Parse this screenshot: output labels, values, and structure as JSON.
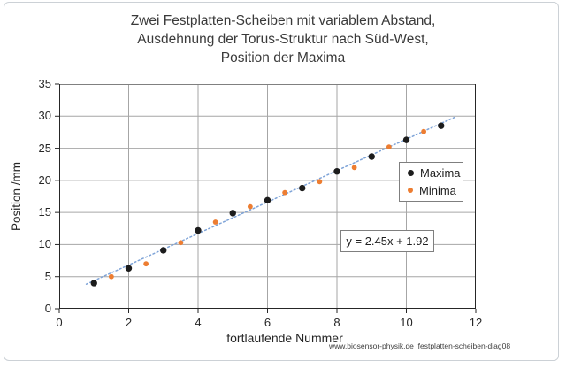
{
  "title": {
    "lines": [
      "Zwei Festplatten-Scheiben mit variablem Abstand,",
      "Ausdehnung der Torus-Struktur nach Süd-West,",
      "Position der Maxima"
    ]
  },
  "chart_data": {
    "type": "scatter",
    "title": "Zwei Festplatten-Scheiben mit variablem Abstand, Ausdehnung der Torus-Struktur nach Süd-West, Position der Maxima",
    "xlabel": "fortlaufende Nummer",
    "ylabel": "Position /mm",
    "xlim": [
      0,
      12
    ],
    "ylim": [
      0,
      35
    ],
    "xticks": [
      0,
      2,
      4,
      6,
      8,
      10,
      12
    ],
    "yticks": [
      0,
      5,
      10,
      15,
      20,
      25,
      30,
      35
    ],
    "grid": true,
    "legend_position": "middle-right",
    "series": [
      {
        "name": "Maxima",
        "color": "#1c1c1c",
        "marker": "circle",
        "marker_radius": 3.7,
        "points": [
          [
            1,
            4.0
          ],
          [
            2,
            6.3
          ],
          [
            3,
            9.1
          ],
          [
            4,
            12.2
          ],
          [
            5,
            14.9
          ],
          [
            6,
            16.9
          ],
          [
            7,
            18.8
          ],
          [
            8,
            21.4
          ],
          [
            9,
            23.7
          ],
          [
            10,
            26.3
          ],
          [
            11,
            28.5
          ]
        ]
      },
      {
        "name": "Minima",
        "color": "#ED7D31",
        "marker": "circle",
        "marker_radius": 2.9,
        "points": [
          [
            1.5,
            5.0
          ],
          [
            2.5,
            7.0
          ],
          [
            3.5,
            10.3
          ],
          [
            4.5,
            13.5
          ],
          [
            5.5,
            15.9
          ],
          [
            6.5,
            18.1
          ],
          [
            7.5,
            19.8
          ],
          [
            8.5,
            22.0
          ],
          [
            9.5,
            25.2
          ],
          [
            10.5,
            27.6
          ]
        ]
      }
    ],
    "trendline": {
      "label": "y = 2.45x + 1.92",
      "slope": 2.45,
      "intercept": 1.92,
      "x_range": [
        0.78,
        11.42
      ],
      "color": "#7FA4D8",
      "style": "dotted"
    }
  },
  "watermark": {
    "text": "www.biosensor-physik.de  festplatten-scheiben-diag08"
  },
  "colors": {
    "grid": "#A6A6A6",
    "plot_border": "#808080",
    "axis": "#262626",
    "text": "#262626",
    "title_text": "#3a3a3a"
  }
}
